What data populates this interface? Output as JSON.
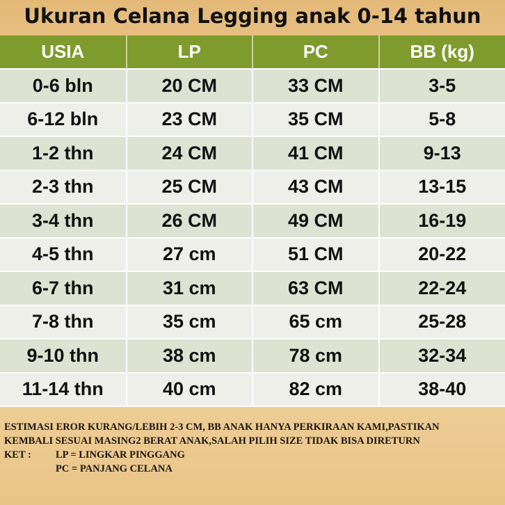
{
  "title": "Ukuran Celana Legging anak 0-14 tahun",
  "colors": {
    "header": "#7f9b2d",
    "row_odd": "#dde2d2",
    "row_even": "#eeefe9"
  },
  "table": {
    "headers": [
      "USIA",
      "LP",
      "PC",
      "BB (kg)"
    ],
    "rows": [
      [
        "0-6 bln",
        "20 CM",
        "33 CM",
        "3-5"
      ],
      [
        "6-12 bln",
        "23 CM",
        "35 CM",
        "5-8"
      ],
      [
        "1-2 thn",
        "24 CM",
        "41 CM",
        "9-13"
      ],
      [
        "2-3 thn",
        "25 CM",
        "43 CM",
        "13-15"
      ],
      [
        "3-4 thn",
        "26 CM",
        "49 CM",
        "16-19"
      ],
      [
        "4-5 thn",
        "27 cm",
        "51 CM",
        "20-22"
      ],
      [
        "6-7 thn",
        "31 cm",
        "63 CM",
        "22-24"
      ],
      [
        "7-8 thn",
        "35 cm",
        "65 cm",
        "25-28"
      ],
      [
        "9-10 thn",
        "38 cm",
        "78 cm",
        "32-34"
      ],
      [
        "11-14 thn",
        "40 cm",
        "82 cm",
        "38-40"
      ]
    ]
  },
  "notes": {
    "line1": "ESTIMASI EROR KURANG/LEBIH 2-3 CM, BB ANAK HANYA PERKIRAAN KAMI,PASTIKAN",
    "line2": "KEMBALI SESUAI MASING2 BERAT ANAK,SALAH PILIH SIZE TIDAK BISA DIRETURN",
    "ket_label": "KET :",
    "ket1": "LP = LINGKAR PINGGANG",
    "ket2": "PC = PANJANG CELANA"
  }
}
